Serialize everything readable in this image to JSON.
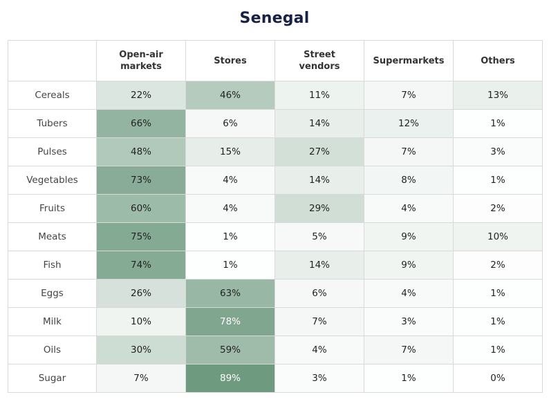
{
  "chart_data": {
    "type": "heatmap",
    "title": "Senegal",
    "columns": [
      "Open-air markets",
      "Stores",
      "Street vendors",
      "Supermarkets",
      "Others"
    ],
    "column_header_lines": [
      [
        "Open-air",
        "markets"
      ],
      [
        "Stores"
      ],
      [
        "Street",
        "vendors"
      ],
      [
        "Supermarkets"
      ],
      [
        "Others"
      ]
    ],
    "rows": [
      "Cereals",
      "Tubers",
      "Pulses",
      "Vegetables",
      "Fruits",
      "Meats",
      "Fish",
      "Eggs",
      "Milk",
      "Oils",
      "Sugar"
    ],
    "values": [
      [
        22,
        46,
        11,
        7,
        13
      ],
      [
        66,
        6,
        14,
        12,
        1
      ],
      [
        48,
        15,
        27,
        7,
        3
      ],
      [
        73,
        4,
        14,
        8,
        1
      ],
      [
        60,
        4,
        29,
        4,
        2
      ],
      [
        75,
        1,
        5,
        9,
        10
      ],
      [
        74,
        1,
        14,
        9,
        2
      ],
      [
        26,
        63,
        6,
        4,
        1
      ],
      [
        10,
        78,
        7,
        3,
        1
      ],
      [
        30,
        59,
        4,
        7,
        1
      ],
      [
        7,
        89,
        3,
        1,
        0
      ]
    ],
    "unit": "%",
    "color_low": "#ffffff",
    "color_high": "#6e9a80"
  }
}
